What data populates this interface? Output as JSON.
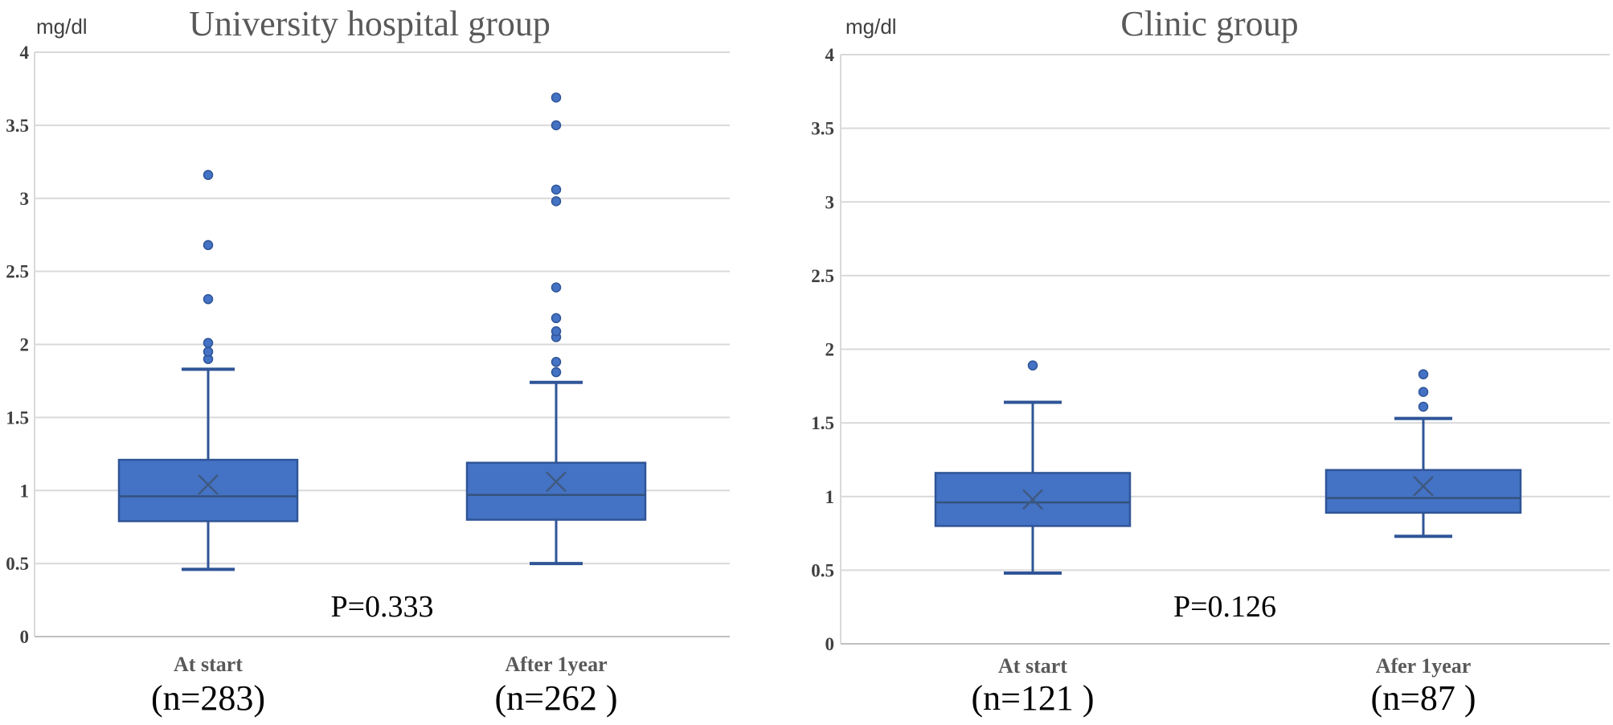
{
  "figure": {
    "background": "#ffffff"
  },
  "colors": {
    "box_fill": "#4472c4",
    "box_border": "#2f5597",
    "whisker": "#2f5597",
    "median_line": "#33527d",
    "mean_marker": "#3f5a80",
    "outlier_fill": "#4472c4",
    "outlier_stroke": "#2f5597",
    "gridline": "#d9d9d9",
    "axis_line": "#bfbfbf",
    "tick_text": "#404040",
    "title_text": "#595959",
    "category_text": "#595959",
    "annotation_text": "#000000"
  },
  "chart_data": [
    {
      "type": "box",
      "title": "University hospital group",
      "unit_label": "mg/dl",
      "p_value_label": "P=0.333",
      "ylim": [
        0,
        4
      ],
      "ytick_step": 0.5,
      "grid": true,
      "series": [
        {
          "label": "At start",
          "n_label": "(n=283)",
          "whisker_low": 0.46,
          "q1": 0.79,
          "median": 0.96,
          "mean": 1.04,
          "q3": 1.21,
          "whisker_high": 1.83,
          "outliers": [
            1.9,
            1.95,
            2.01,
            2.31,
            2.68,
            3.16
          ]
        },
        {
          "label": "After 1year",
          "n_label": "(n=262 )",
          "whisker_low": 0.5,
          "q1": 0.8,
          "median": 0.97,
          "mean": 1.06,
          "q3": 1.19,
          "whisker_high": 1.74,
          "outliers": [
            1.81,
            1.88,
            2.05,
            2.09,
            2.18,
            2.39,
            2.98,
            3.06,
            3.5,
            3.69
          ]
        }
      ]
    },
    {
      "type": "box",
      "title": "Clinic group",
      "unit_label": "mg/dl",
      "p_value_label": "P=0.126",
      "ylim": [
        0,
        4
      ],
      "ytick_step": 0.5,
      "grid": true,
      "series": [
        {
          "label": "At start",
          "n_label": "(n=121 )",
          "whisker_low": 0.48,
          "q1": 0.8,
          "median": 0.96,
          "mean": 0.98,
          "q3": 1.16,
          "whisker_high": 1.64,
          "outliers": [
            1.89
          ]
        },
        {
          "label": "Afer 1year",
          "n_label": "(n=87 )",
          "whisker_low": 0.73,
          "q1": 0.89,
          "median": 0.99,
          "mean": 1.07,
          "q3": 1.18,
          "whisker_high": 1.53,
          "outliers": [
            1.61,
            1.71,
            1.83
          ]
        }
      ]
    }
  ]
}
